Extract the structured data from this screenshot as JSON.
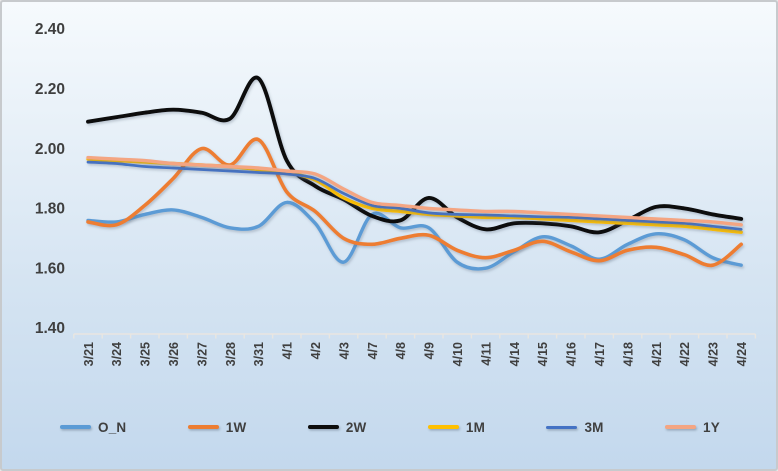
{
  "chart_data": {
    "type": "line",
    "title": "",
    "xlabel": "",
    "ylabel": "",
    "grid": false,
    "smoothed": true,
    "legend_position": "bottom",
    "ylim": [
      1.4,
      2.4
    ],
    "y_ticks": [
      2.4,
      2.2,
      2.0,
      1.8,
      1.6,
      1.4
    ],
    "categories": [
      "3/21",
      "3/24",
      "3/25",
      "3/26",
      "3/27",
      "3/28",
      "3/31",
      "4/1",
      "4/2",
      "4/3",
      "4/7",
      "4/8",
      "4/9",
      "4/10",
      "4/11",
      "4/14",
      "4/15",
      "4/16",
      "4/17",
      "4/18",
      "4/21",
      "4/22",
      "4/23",
      "4/24"
    ],
    "series": [
      {
        "name": "O_N",
        "color": "#5B9BD5",
        "values": [
          1.76,
          1.755,
          1.78,
          1.795,
          1.77,
          1.735,
          1.74,
          1.82,
          1.75,
          1.62,
          1.78,
          1.735,
          1.735,
          1.62,
          1.6,
          1.655,
          1.705,
          1.675,
          1.63,
          1.68,
          1.715,
          1.695,
          1.635,
          1.61
        ]
      },
      {
        "name": "1W",
        "color": "#ED7D31",
        "values": [
          1.755,
          1.745,
          1.81,
          1.9,
          2.0,
          1.945,
          2.03,
          1.855,
          1.79,
          1.7,
          1.68,
          1.7,
          1.71,
          1.66,
          1.635,
          1.66,
          1.69,
          1.655,
          1.625,
          1.66,
          1.67,
          1.645,
          1.61,
          1.68
        ]
      },
      {
        "name": "2W",
        "color": "#0d0d0d",
        "values": [
          2.09,
          2.105,
          2.12,
          2.13,
          2.12,
          2.1,
          2.235,
          1.96,
          1.875,
          1.83,
          1.775,
          1.76,
          1.835,
          1.77,
          1.73,
          1.75,
          1.75,
          1.74,
          1.72,
          1.76,
          1.805,
          1.8,
          1.78,
          1.765
        ]
      },
      {
        "name": "1M",
        "color": "#FFC000",
        "values": [
          1.965,
          1.96,
          1.955,
          1.95,
          1.945,
          1.94,
          1.93,
          1.92,
          1.895,
          1.835,
          1.8,
          1.79,
          1.78,
          1.775,
          1.77,
          1.77,
          1.765,
          1.76,
          1.755,
          1.75,
          1.745,
          1.74,
          1.73,
          1.72
        ]
      },
      {
        "name": "3M",
        "color": "#4472C4",
        "values": [
          1.955,
          1.95,
          1.94,
          1.935,
          1.93,
          1.925,
          1.92,
          1.915,
          1.9,
          1.85,
          1.81,
          1.8,
          1.785,
          1.78,
          1.778,
          1.775,
          1.772,
          1.77,
          1.765,
          1.76,
          1.755,
          1.75,
          1.74,
          1.73
        ]
      },
      {
        "name": "1Y",
        "color": "#F4A582",
        "values": [
          1.97,
          1.965,
          1.96,
          1.95,
          1.945,
          1.94,
          1.935,
          1.925,
          1.915,
          1.865,
          1.82,
          1.81,
          1.8,
          1.795,
          1.79,
          1.79,
          1.785,
          1.78,
          1.775,
          1.77,
          1.765,
          1.76,
          1.755,
          1.745
        ]
      }
    ]
  },
  "colors": {
    "text": "#3f3f3f",
    "axis_line": "#e9e6e1",
    "bg_top": "#f6fafd",
    "bg_bottom": "#c3d8ed",
    "border": "#c7cacd"
  }
}
